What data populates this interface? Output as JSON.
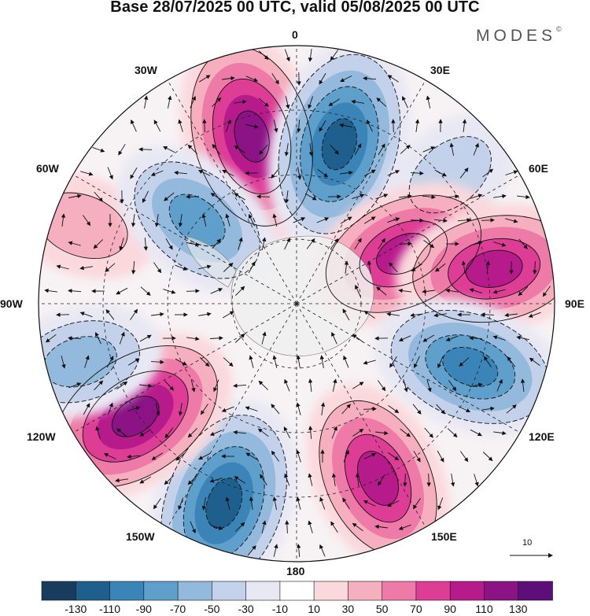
{
  "title": "Base 28/07/2025 00 UTC, valid 05/08/2025 00 UTC",
  "logo": {
    "text": "MODES",
    "mark": "©"
  },
  "map": {
    "projection": "south polar stereographic",
    "longitude_labels": {
      "top": "0",
      "top_right": "30E",
      "upper_right": "60E",
      "right": "90E",
      "lower_right": "120E",
      "bottom_right": "150E",
      "bottom": "180",
      "bottom_left": "150W",
      "lower_left": "120W",
      "left": "90W",
      "upper_left": "60W",
      "top_left": "30W"
    },
    "anomaly_centers": [
      {
        "lon_label": "15W",
        "sign": "positive",
        "max": 130
      },
      {
        "lon_label": "15E",
        "sign": "negative",
        "min": -130
      },
      {
        "lon_label": "50E",
        "sign": "negative",
        "min": -50
      },
      {
        "lon_label": "65E",
        "sign": "positive",
        "max": 110
      },
      {
        "lon_label": "80E",
        "sign": "positive",
        "max": 110
      },
      {
        "lon_label": "110E",
        "sign": "negative",
        "min": -110
      },
      {
        "lon_label": "155E",
        "sign": "positive",
        "max": 110
      },
      {
        "lon_label": "160W",
        "sign": "negative",
        "min": -130
      },
      {
        "lon_label": "125W",
        "sign": "positive",
        "max": 130
      },
      {
        "lon_label": "105W",
        "sign": "negative",
        "min": -70
      },
      {
        "lon_label": "70W",
        "sign": "positive",
        "max": 50
      },
      {
        "lon_label": "50W",
        "sign": "negative",
        "min": -90
      }
    ]
  },
  "vector_key": {
    "label": "10"
  },
  "colorbar": {
    "tick_labels": [
      "-130",
      "-110",
      "-90",
      "-70",
      "-50",
      "-30",
      "-10",
      "10",
      "30",
      "50",
      "70",
      "90",
      "110",
      "130"
    ],
    "colors": [
      "#173c5e",
      "#1f5f8e",
      "#3b84b8",
      "#5f9fcb",
      "#93b9dc",
      "#c3d2ea",
      "#e8e8f4",
      "#ffffff",
      "#fbd8dc",
      "#f6afbe",
      "#ee7aa8",
      "#de3d96",
      "#b71a8b",
      "#8b1385",
      "#5e0e78"
    ]
  }
}
